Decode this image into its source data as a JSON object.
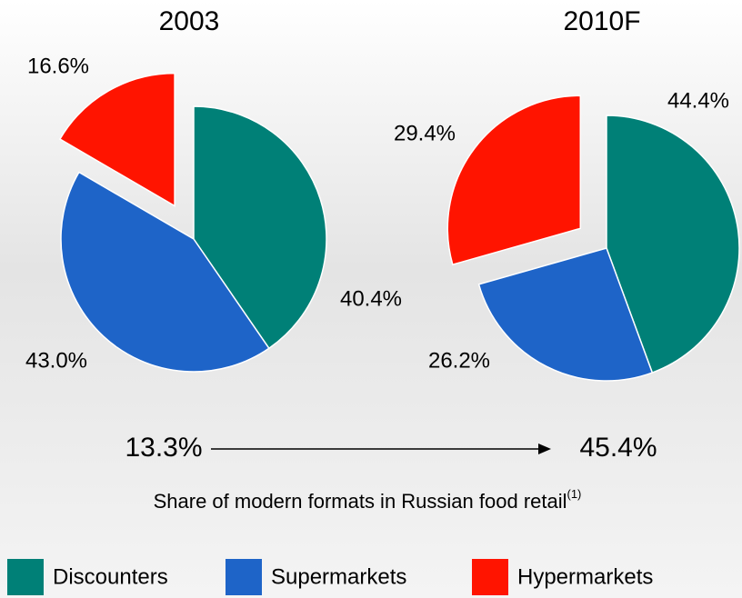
{
  "chart_data": [
    {
      "type": "pie",
      "title": "2003",
      "categories": [
        "Discounters",
        "Supermarkets",
        "Hypermarkets"
      ],
      "values": [
        40.4,
        43.0,
        16.6
      ],
      "value_labels": [
        "40.4%",
        "43.0%",
        "16.6%"
      ],
      "colors": [
        "#008077",
        "#1e64c8",
        "#ff1400"
      ],
      "exploded": [
        "Hypermarkets"
      ]
    },
    {
      "type": "pie",
      "title": "2010F",
      "categories": [
        "Discounters",
        "Supermarkets",
        "Hypermarkets"
      ],
      "values": [
        44.4,
        26.2,
        29.4
      ],
      "value_labels": [
        "44.4%",
        "26.2%",
        "29.4%"
      ],
      "colors": [
        "#008077",
        "#1e64c8",
        "#ff1400"
      ],
      "exploded": [
        "Hypermarkets"
      ]
    }
  ],
  "annotation": {
    "from": "13.3%",
    "to": "45.4%",
    "caption": "Share of modern formats in Russian food retail",
    "footnote": "(1)"
  }
}
